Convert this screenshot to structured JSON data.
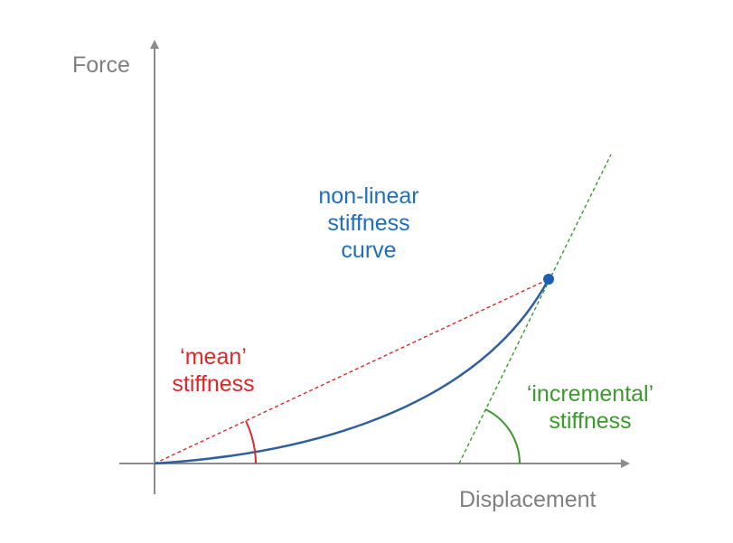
{
  "axes": {
    "y_label": "Force",
    "x_label": "Displacement"
  },
  "curve_label": {
    "line1": "non-linear",
    "line2": "stiffness",
    "line3": "curve"
  },
  "mean_label": {
    "line1": "‘mean’",
    "line2": "stiffness"
  },
  "incremental_label": {
    "line1": "‘incremental’",
    "line2": "stiffness"
  },
  "colors": {
    "axis": "#8c8c8c",
    "axis_text": "#808080",
    "curve": "#2e5f9e",
    "curve_text": "#1f6fbf",
    "mean": "#e02626",
    "incremental": "#3a9a2a"
  }
}
